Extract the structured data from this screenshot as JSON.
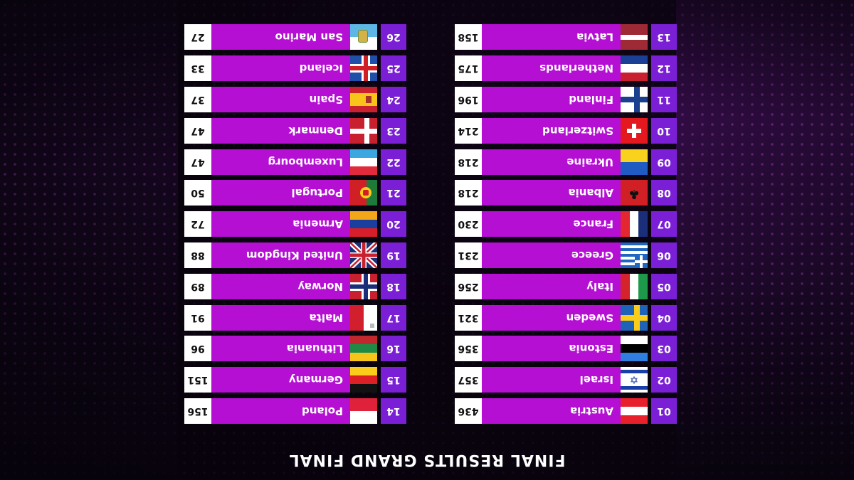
{
  "title": "FINAL RESULTS GRAND FINAL",
  "left_column": [
    {
      "rank": "01",
      "country": "Austria",
      "points": "436",
      "flag": "austria-flag"
    },
    {
      "rank": "02",
      "country": "Israel",
      "points": "357",
      "flag": "israel-flag"
    },
    {
      "rank": "03",
      "country": "Estonia",
      "points": "356",
      "flag": "estonia-flag"
    },
    {
      "rank": "04",
      "country": "Sweden",
      "points": "321",
      "flag": "sweden-flag"
    },
    {
      "rank": "05",
      "country": "Italy",
      "points": "256",
      "flag": "italy-flag"
    },
    {
      "rank": "06",
      "country": "Greece",
      "points": "231",
      "flag": "greece-flag"
    },
    {
      "rank": "07",
      "country": "France",
      "points": "230",
      "flag": "france-flag"
    },
    {
      "rank": "08",
      "country": "Albania",
      "points": "218",
      "flag": "albania-flag"
    },
    {
      "rank": "09",
      "country": "Ukraine",
      "points": "218",
      "flag": "ukraine-flag"
    },
    {
      "rank": "10",
      "country": "Switzerland",
      "points": "214",
      "flag": "switzerland-flag"
    },
    {
      "rank": "11",
      "country": "Finland",
      "points": "196",
      "flag": "finland-flag"
    },
    {
      "rank": "12",
      "country": "Netherlands",
      "points": "175",
      "flag": "netherlands-flag"
    },
    {
      "rank": "13",
      "country": "Latvia",
      "points": "158",
      "flag": "latvia-flag"
    }
  ],
  "right_column": [
    {
      "rank": "14",
      "country": "Poland",
      "points": "156",
      "flag": "poland-flag"
    },
    {
      "rank": "15",
      "country": "Germany",
      "points": "151",
      "flag": "germany-flag"
    },
    {
      "rank": "16",
      "country": "Lithuania",
      "points": "96",
      "flag": "lithuania-flag"
    },
    {
      "rank": "17",
      "country": "Malta",
      "points": "91",
      "flag": "malta-flag"
    },
    {
      "rank": "18",
      "country": "Norway",
      "points": "89",
      "flag": "norway-flag"
    },
    {
      "rank": "19",
      "country": "United Kingdom",
      "points": "88",
      "flag": "united-kingdom-flag"
    },
    {
      "rank": "20",
      "country": "Armenia",
      "points": "72",
      "flag": "armenia-flag"
    },
    {
      "rank": "21",
      "country": "Portugal",
      "points": "50",
      "flag": "portugal-flag"
    },
    {
      "rank": "22",
      "country": "Luxembourg",
      "points": "47",
      "flag": "luxembourg-flag"
    },
    {
      "rank": "23",
      "country": "Denmark",
      "points": "47",
      "flag": "denmark-flag"
    },
    {
      "rank": "24",
      "country": "Spain",
      "points": "37",
      "flag": "spain-flag"
    },
    {
      "rank": "25",
      "country": "Iceland",
      "points": "33",
      "flag": "iceland-flag"
    },
    {
      "rank": "26",
      "country": "San Marino",
      "points": "27",
      "flag": "san-marino-flag"
    }
  ],
  "colors": {
    "rank_box": "#7b1fd6",
    "country_bar": "#b40fd3",
    "points_box": "#ffffff"
  },
  "display": {
    "orientation": "upside-down"
  }
}
